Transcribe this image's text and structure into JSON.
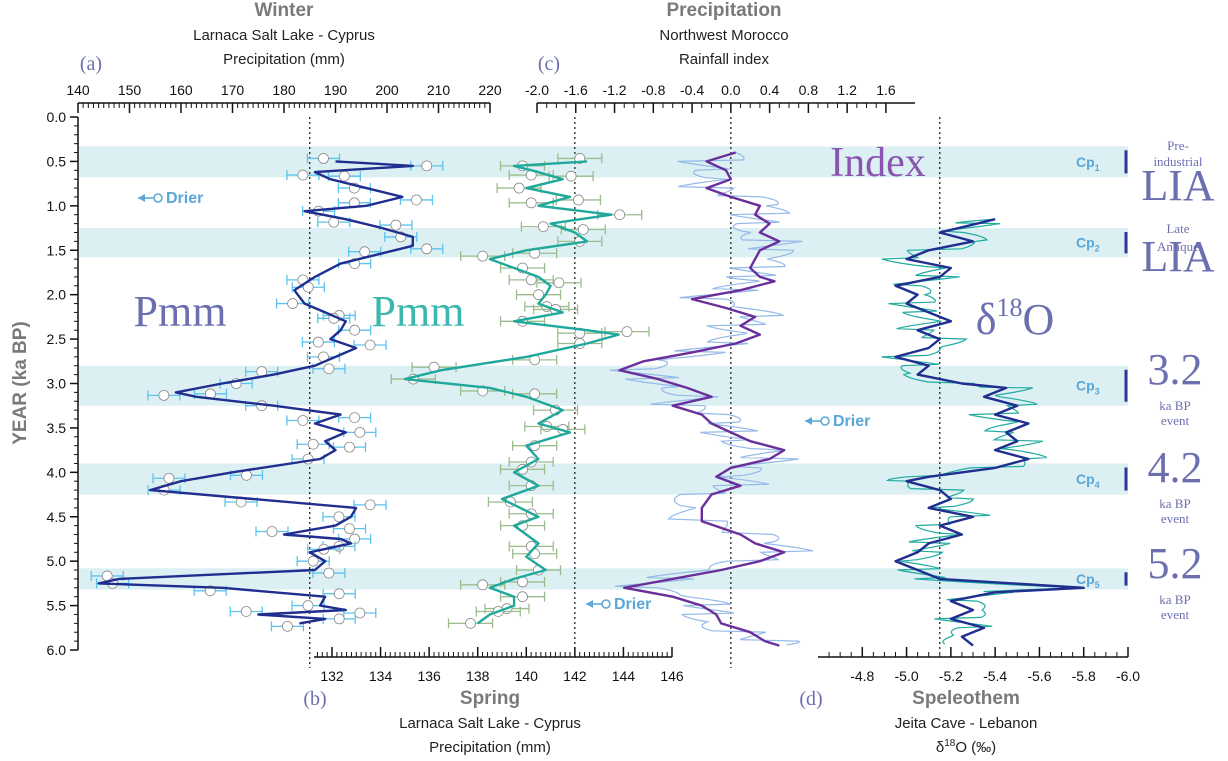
{
  "chart_data": {
    "type": "line",
    "y_axis": {
      "label": "YEAR (ka BP)",
      "ylim": [
        0.0,
        6.0
      ],
      "ticks": [
        "0.0",
        "0.5",
        "1.0",
        "1.5",
        "2.0",
        "2.5",
        "3.0",
        "3.5",
        "4.0",
        "4.5",
        "5.0",
        "5.5",
        "6.0"
      ]
    },
    "panels": [
      {
        "letter": "(a)",
        "title": "Winter",
        "subtitle1": "Larnaca Salt Lake - Cyprus",
        "subtitle2": "Precipitation (mm)",
        "series_label": "Pmm",
        "xlim": [
          140,
          220
        ],
        "ticks": [
          "140",
          "150",
          "160",
          "170",
          "180",
          "190",
          "200",
          "210",
          "220"
        ],
        "ref_line": 185,
        "color_line": "#1f2e8f",
        "color_points": "#5ec3ee",
        "series": [
          {
            "y": 0.5,
            "x": 190
          },
          {
            "y": 0.55,
            "x": 205
          },
          {
            "y": 0.62,
            "x": 186
          },
          {
            "y": 0.7,
            "x": 189
          },
          {
            "y": 0.8,
            "x": 196
          },
          {
            "y": 0.9,
            "x": 203
          },
          {
            "y": 1.0,
            "x": 196
          },
          {
            "y": 1.06,
            "x": 184
          },
          {
            "y": 1.15,
            "x": 192
          },
          {
            "y": 1.25,
            "x": 199
          },
          {
            "y": 1.35,
            "x": 205
          },
          {
            "y": 1.45,
            "x": 205
          },
          {
            "y": 1.55,
            "x": 198
          },
          {
            "y": 1.65,
            "x": 191
          },
          {
            "y": 1.8,
            "x": 186
          },
          {
            "y": 1.95,
            "x": 182
          },
          {
            "y": 2.1,
            "x": 184
          },
          {
            "y": 2.2,
            "x": 188
          },
          {
            "y": 2.3,
            "x": 192
          },
          {
            "y": 2.4,
            "x": 191
          },
          {
            "y": 2.5,
            "x": 189
          },
          {
            "y": 2.6,
            "x": 194
          },
          {
            "y": 2.7,
            "x": 190
          },
          {
            "y": 2.8,
            "x": 186
          },
          {
            "y": 2.9,
            "x": 178
          },
          {
            "y": 3.0,
            "x": 168
          },
          {
            "y": 3.1,
            "x": 159
          },
          {
            "y": 3.15,
            "x": 163
          },
          {
            "y": 3.25,
            "x": 178
          },
          {
            "y": 3.35,
            "x": 191
          },
          {
            "y": 3.45,
            "x": 186
          },
          {
            "y": 3.55,
            "x": 192
          },
          {
            "y": 3.65,
            "x": 188
          },
          {
            "y": 3.75,
            "x": 190
          },
          {
            "y": 3.85,
            "x": 187
          },
          {
            "y": 4.0,
            "x": 170
          },
          {
            "y": 4.1,
            "x": 160
          },
          {
            "y": 4.2,
            "x": 154
          },
          {
            "y": 4.3,
            "x": 174
          },
          {
            "y": 4.4,
            "x": 194
          },
          {
            "y": 4.5,
            "x": 193
          },
          {
            "y": 4.6,
            "x": 190
          },
          {
            "y": 4.7,
            "x": 180
          },
          {
            "y": 4.75,
            "x": 191
          },
          {
            "y": 4.8,
            "x": 193
          },
          {
            "y": 4.9,
            "x": 185
          },
          {
            "y": 5.0,
            "x": 188
          },
          {
            "y": 5.1,
            "x": 186
          },
          {
            "y": 5.2,
            "x": 148
          },
          {
            "y": 5.25,
            "x": 144
          },
          {
            "y": 5.3,
            "x": 168
          },
          {
            "y": 5.4,
            "x": 188
          },
          {
            "y": 5.5,
            "x": 187
          },
          {
            "y": 5.55,
            "x": 192
          },
          {
            "y": 5.6,
            "x": 175
          },
          {
            "y": 5.65,
            "x": 188
          },
          {
            "y": 5.7,
            "x": 183
          }
        ]
      },
      {
        "letter": "(b)",
        "title": "Spring",
        "subtitle1": "Larnaca Salt Lake - Cyprus",
        "subtitle2": "Precipitation (mm)",
        "series_label": "Pmm",
        "xlim": [
          130,
          146
        ],
        "ticks": [
          "132",
          "134",
          "136",
          "138",
          "140",
          "142",
          "144",
          "146"
        ],
        "ref_line": 142,
        "color_line": "#1fa89b",
        "color_points": "#9bbd8e",
        "series": [
          {
            "y": 0.5,
            "x": 142.5
          },
          {
            "y": 0.55,
            "x": 139.5
          },
          {
            "y": 0.62,
            "x": 140.5
          },
          {
            "y": 0.7,
            "x": 141.5
          },
          {
            "y": 0.8,
            "x": 140.0
          },
          {
            "y": 0.9,
            "x": 141.8
          },
          {
            "y": 1.0,
            "x": 140.5
          },
          {
            "y": 1.1,
            "x": 143.5
          },
          {
            "y": 1.2,
            "x": 141.0
          },
          {
            "y": 1.3,
            "x": 142.0
          },
          {
            "y": 1.4,
            "x": 142.5
          },
          {
            "y": 1.5,
            "x": 140.0
          },
          {
            "y": 1.6,
            "x": 138.5
          },
          {
            "y": 1.7,
            "x": 139.5
          },
          {
            "y": 1.8,
            "x": 140.5
          },
          {
            "y": 1.9,
            "x": 141.0
          },
          {
            "y": 2.0,
            "x": 140.8
          },
          {
            "y": 2.1,
            "x": 140.5
          },
          {
            "y": 2.2,
            "x": 141.5
          },
          {
            "y": 2.3,
            "x": 139.5
          },
          {
            "y": 2.4,
            "x": 142.5
          },
          {
            "y": 2.45,
            "x": 143.8
          },
          {
            "y": 2.55,
            "x": 142.5
          },
          {
            "y": 2.7,
            "x": 140.0
          },
          {
            "y": 2.85,
            "x": 136.5
          },
          {
            "y": 2.95,
            "x": 135.0
          },
          {
            "y": 3.05,
            "x": 138.5
          },
          {
            "y": 3.15,
            "x": 140.0
          },
          {
            "y": 3.3,
            "x": 141.5
          },
          {
            "y": 3.45,
            "x": 140.5
          },
          {
            "y": 3.55,
            "x": 141.8
          },
          {
            "y": 3.7,
            "x": 140.0
          },
          {
            "y": 3.85,
            "x": 140.5
          },
          {
            "y": 4.0,
            "x": 139.5
          },
          {
            "y": 4.15,
            "x": 140.5
          },
          {
            "y": 4.3,
            "x": 139.0
          },
          {
            "y": 4.5,
            "x": 140.5
          },
          {
            "y": 4.6,
            "x": 139.5
          },
          {
            "y": 4.8,
            "x": 140.5
          },
          {
            "y": 4.95,
            "x": 140.0
          },
          {
            "y": 5.1,
            "x": 140.8
          },
          {
            "y": 5.2,
            "x": 139.5
          },
          {
            "y": 5.3,
            "x": 138.5
          },
          {
            "y": 5.4,
            "x": 139.5
          },
          {
            "y": 5.5,
            "x": 139.5
          },
          {
            "y": 5.6,
            "x": 138.5
          },
          {
            "y": 5.7,
            "x": 138.0
          }
        ]
      },
      {
        "letter": "(c)",
        "title": "Precipitation",
        "subtitle1": "Northwest Morocco",
        "subtitle2": "Rainfall index",
        "series_label": "Index",
        "xlim": [
          -2.0,
          1.9
        ],
        "ticks": [
          "-2.0",
          "-1.6",
          "-1.2",
          "-0.8",
          "-0.4",
          "0.0",
          "0.4",
          "0.8",
          "1.2",
          "1.6"
        ],
        "ref_line": 0.0,
        "color_line": "#6a2f9a",
        "color_raw": "#8fb5e8",
        "series": [
          {
            "y": 0.4,
            "x": 0.05
          },
          {
            "y": 0.5,
            "x": -0.25
          },
          {
            "y": 0.6,
            "x": -0.05
          },
          {
            "y": 0.7,
            "x": 0.0
          },
          {
            "y": 0.8,
            "x": -0.25
          },
          {
            "y": 0.9,
            "x": 0.0
          },
          {
            "y": 1.0,
            "x": 0.3
          },
          {
            "y": 1.1,
            "x": 0.25
          },
          {
            "y": 1.2,
            "x": 0.4
          },
          {
            "y": 1.3,
            "x": 0.3
          },
          {
            "y": 1.4,
            "x": 0.5
          },
          {
            "y": 1.5,
            "x": 0.3
          },
          {
            "y": 1.6,
            "x": 0.25
          },
          {
            "y": 1.7,
            "x": 0.2
          },
          {
            "y": 1.8,
            "x": 0.3
          },
          {
            "y": 1.85,
            "x": 0.45
          },
          {
            "y": 1.95,
            "x": 0.1
          },
          {
            "y": 2.05,
            "x": -0.4
          },
          {
            "y": 2.15,
            "x": -0.05
          },
          {
            "y": 2.25,
            "x": 0.25
          },
          {
            "y": 2.35,
            "x": 0.1
          },
          {
            "y": 2.45,
            "x": 0.3
          },
          {
            "y": 2.55,
            "x": 0.05
          },
          {
            "y": 2.65,
            "x": -0.4
          },
          {
            "y": 2.75,
            "x": -0.9
          },
          {
            "y": 2.85,
            "x": -1.15
          },
          {
            "y": 2.95,
            "x": -0.75
          },
          {
            "y": 3.05,
            "x": -0.45
          },
          {
            "y": 3.15,
            "x": -0.2
          },
          {
            "y": 3.25,
            "x": -0.6
          },
          {
            "y": 3.35,
            "x": -0.3
          },
          {
            "y": 3.45,
            "x": -0.2
          },
          {
            "y": 3.55,
            "x": 0.0
          },
          {
            "y": 3.65,
            "x": 0.2
          },
          {
            "y": 3.75,
            "x": 0.55
          },
          {
            "y": 3.85,
            "x": 0.4
          },
          {
            "y": 3.95,
            "x": 0.0
          },
          {
            "y": 4.05,
            "x": -0.15
          },
          {
            "y": 4.15,
            "x": 0.1
          },
          {
            "y": 4.25,
            "x": -0.2
          },
          {
            "y": 4.4,
            "x": -0.3
          },
          {
            "y": 4.55,
            "x": -0.3
          },
          {
            "y": 4.7,
            "x": 0.1
          },
          {
            "y": 4.8,
            "x": 0.25
          },
          {
            "y": 4.9,
            "x": 0.55
          },
          {
            "y": 5.0,
            "x": 0.3
          },
          {
            "y": 5.1,
            "x": -0.1
          },
          {
            "y": 5.2,
            "x": -0.6
          },
          {
            "y": 5.3,
            "x": -1.1
          },
          {
            "y": 5.4,
            "x": -0.6
          },
          {
            "y": 5.5,
            "x": -0.3
          },
          {
            "y": 5.6,
            "x": -0.15
          },
          {
            "y": 5.7,
            "x": -0.1
          },
          {
            "y": 5.8,
            "x": 0.2
          },
          {
            "y": 5.9,
            "x": 0.35
          },
          {
            "y": 5.95,
            "x": 0.5
          }
        ]
      },
      {
        "letter": "(d)",
        "title": "Speleothem",
        "subtitle1": "Jeita Cave - Lebanon",
        "subtitle2": "δ18O (‰)",
        "series_label": "δ18O",
        "xlim": [
          -4.6,
          -6.0
        ],
        "ticks": [
          "-4.8",
          "-5.0",
          "-5.2",
          "-5.4",
          "-5.6",
          "-5.8",
          "-6.0"
        ],
        "ref_line": -5.15,
        "color_line": "#1f2e8f",
        "color_raw": "#14a89b",
        "series": [
          {
            "y": 1.15,
            "x": -5.4
          },
          {
            "y": 1.2,
            "x": -5.32
          },
          {
            "y": 1.3,
            "x": -5.15
          },
          {
            "y": 1.4,
            "x": -5.3
          },
          {
            "y": 1.5,
            "x": -5.1
          },
          {
            "y": 1.6,
            "x": -5.0
          },
          {
            "y": 1.7,
            "x": -5.2
          },
          {
            "y": 1.8,
            "x": -5.15
          },
          {
            "y": 1.9,
            "x": -4.95
          },
          {
            "y": 2.0,
            "x": -5.05
          },
          {
            "y": 2.1,
            "x": -5.0
          },
          {
            "y": 2.2,
            "x": -5.1
          },
          {
            "y": 2.3,
            "x": -5.2
          },
          {
            "y": 2.4,
            "x": -5.05
          },
          {
            "y": 2.5,
            "x": -5.15
          },
          {
            "y": 2.6,
            "x": -5.1
          },
          {
            "y": 2.7,
            "x": -4.95
          },
          {
            "y": 2.8,
            "x": -5.1
          },
          {
            "y": 2.9,
            "x": -5.05
          },
          {
            "y": 3.0,
            "x": -5.25
          },
          {
            "y": 3.05,
            "x": -5.45
          },
          {
            "y": 3.15,
            "x": -5.35
          },
          {
            "y": 3.25,
            "x": -5.5
          },
          {
            "y": 3.35,
            "x": -5.4
          },
          {
            "y": 3.45,
            "x": -5.55
          },
          {
            "y": 3.55,
            "x": -5.45
          },
          {
            "y": 3.65,
            "x": -5.5
          },
          {
            "y": 3.75,
            "x": -5.4
          },
          {
            "y": 3.85,
            "x": -5.55
          },
          {
            "y": 3.95,
            "x": -5.4
          },
          {
            "y": 4.05,
            "x": -5.1
          },
          {
            "y": 4.1,
            "x": -5.0
          },
          {
            "y": 4.2,
            "x": -5.15
          },
          {
            "y": 4.3,
            "x": -5.2
          },
          {
            "y": 4.4,
            "x": -5.1
          },
          {
            "y": 4.5,
            "x": -5.3
          },
          {
            "y": 4.6,
            "x": -5.15
          },
          {
            "y": 4.7,
            "x": -5.25
          },
          {
            "y": 4.8,
            "x": -5.1
          },
          {
            "y": 4.9,
            "x": -5.05
          },
          {
            "y": 5.0,
            "x": -4.95
          },
          {
            "y": 5.1,
            "x": -5.05
          },
          {
            "y": 5.2,
            "x": -5.15
          },
          {
            "y": 5.3,
            "x": -5.8
          },
          {
            "y": 5.35,
            "x": -5.4
          },
          {
            "y": 5.45,
            "x": -5.2
          },
          {
            "y": 5.55,
            "x": -5.3
          },
          {
            "y": 5.65,
            "x": -5.2
          },
          {
            "y": 5.75,
            "x": -5.35
          },
          {
            "y": 5.85,
            "x": -5.25
          },
          {
            "y": 5.95,
            "x": -5.3
          }
        ]
      }
    ],
    "bands": [
      {
        "label": "Cp",
        "sub": "1",
        "y0": 0.33,
        "y1": 0.68
      },
      {
        "label": "Cp",
        "sub": "2",
        "y0": 1.25,
        "y1": 1.58
      },
      {
        "label": "Cp",
        "sub": "3",
        "y0": 2.8,
        "y1": 3.25
      },
      {
        "label": "Cp",
        "sub": "4",
        "y0": 3.9,
        "y1": 4.25
      },
      {
        "label": "Cp",
        "sub": "5",
        "y0": 5.08,
        "y1": 5.32
      }
    ],
    "events": [
      {
        "top": "Pre-",
        "top2": "industrial",
        "main": "LIA"
      },
      {
        "top": "Late",
        "top2": "Antique",
        "main": "LIA"
      },
      {
        "main": "3.2",
        "sub1": "ka BP",
        "sub2": "event"
      },
      {
        "main": "4.2",
        "sub1": "ka BP",
        "sub2": "event"
      },
      {
        "main": "5.2",
        "sub1": "ka BP",
        "sub2": "event"
      }
    ],
    "annotations": [
      {
        "text": "Drier",
        "arrow": "left"
      },
      {
        "text": "Drier",
        "arrow": "left"
      },
      {
        "text": "Drier",
        "arrow": "left"
      }
    ]
  }
}
